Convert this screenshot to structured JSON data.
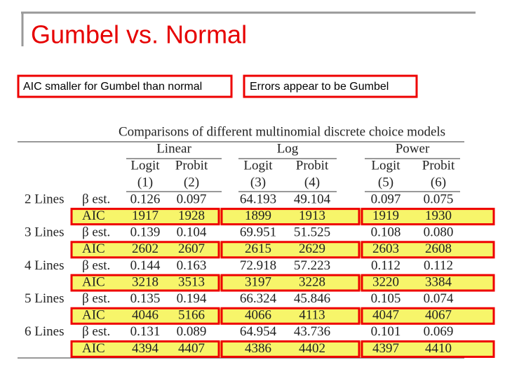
{
  "header": {
    "title": "Gumbel vs. Normal"
  },
  "callouts": [
    "AIC smaller for Gumbel than normal",
    "Errors appear to be Gumbel"
  ],
  "table": {
    "caption": "Comparisons of different multinomial discrete choice models",
    "groups": [
      "Linear",
      "Log",
      "Power"
    ],
    "subheaders": [
      "Logit",
      "Probit",
      "Logit",
      "Probit",
      "Logit",
      "Probit"
    ],
    "column_numbers": [
      "(1)",
      "(2)",
      "(3)",
      "(4)",
      "(5)",
      "(6)"
    ],
    "rows": [
      {
        "label": "2 Lines",
        "est_label": "β est.",
        "est": [
          "0.126",
          "0.097",
          "64.193",
          "49.104",
          "0.097",
          "0.075"
        ],
        "aic_label": "AIC",
        "aic": [
          "1917",
          "1928",
          "1899",
          "1913",
          "1919",
          "1930"
        ]
      },
      {
        "label": "3 Lines",
        "est_label": "β est.",
        "est": [
          "0.139",
          "0.104",
          "69.951",
          "51.525",
          "0.108",
          "0.080"
        ],
        "aic_label": "AIC",
        "aic": [
          "2602",
          "2607",
          "2615",
          "2629",
          "2603",
          "2608"
        ]
      },
      {
        "label": "4 Lines",
        "est_label": "β est.",
        "est": [
          "0.144",
          "0.163",
          "72.918",
          "57.223",
          "0.112",
          "0.112"
        ],
        "aic_label": "AIC",
        "aic": [
          "3218",
          "3513",
          "3197",
          "3228",
          "3220",
          "3384"
        ]
      },
      {
        "label": "5 Lines",
        "est_label": "β est.",
        "est": [
          "0.135",
          "0.194",
          "66.324",
          "45.846",
          "0.105",
          "0.074"
        ],
        "aic_label": "AIC",
        "aic": [
          "4046",
          "5166",
          "4066",
          "4113",
          "4047",
          "4067"
        ]
      },
      {
        "label": "6 Lines",
        "est_label": "β est.",
        "est": [
          "0.131",
          "0.089",
          "64.954",
          "43.736",
          "0.101",
          "0.069"
        ],
        "aic_label": "AIC",
        "aic": [
          "4394",
          "4407",
          "4386",
          "4402",
          "4397",
          "4410"
        ]
      }
    ]
  }
}
